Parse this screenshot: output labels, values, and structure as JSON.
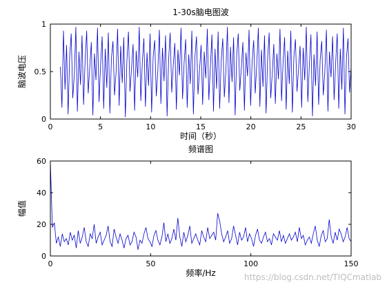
{
  "colors": {
    "line": "#0000cc",
    "axes": "#000000",
    "background": "#ffffff",
    "watermark": "#bdbdbd"
  },
  "watermark": "https://blog.csdn.net/TIQCmatlab",
  "chart_data": [
    {
      "type": "line",
      "title": "1-30s脑电图波",
      "xlabel": "时间（秒）",
      "ylabel": "脑波电压",
      "xlim": [
        0,
        30
      ],
      "ylim": [
        0,
        1
      ],
      "xticks": [
        "0",
        "5",
        "10",
        "15",
        "20",
        "25",
        "30"
      ],
      "yticks": [
        "0",
        "0.5",
        "1"
      ],
      "grid": false,
      "series": [
        {
          "x_start": 1,
          "x_end": 30,
          "values": [
            0.55,
            0.12,
            0.93,
            0.31,
            0.78,
            0.05,
            0.66,
            0.9,
            0.22,
            0.47,
            0.97,
            0.08,
            0.71,
            0.36,
            0.88,
            0.15,
            0.62,
            0.93,
            0.27,
            0.55,
            0.81,
            0.04,
            0.69,
            0.41,
            0.96,
            0.18,
            0.58,
            0.87,
            0.11,
            0.74,
            0.33,
            0.91,
            0.06,
            0.64,
            0.82,
            0.25,
            0.49,
            0.95,
            0.14,
            0.77,
            0.38,
            0.86,
            0.02,
            0.61,
            0.92,
            0.29,
            0.53,
            0.79,
            0.09,
            0.72,
            0.44,
            0.97,
            0.19,
            0.6,
            0.85,
            0.13,
            0.7,
            0.35,
            0.9,
            0.07,
            0.66,
            0.83,
            0.24,
            0.51,
            0.94,
            0.16,
            0.75,
            0.4,
            0.88,
            0.03,
            0.63,
            0.91,
            0.28,
            0.57,
            0.8,
            0.1,
            0.73,
            0.46,
            0.96,
            0.21,
            0.59,
            0.84,
            0.12,
            0.68,
            0.37,
            0.93,
            0.05,
            0.65,
            0.87,
            0.26,
            0.52,
            0.78,
            0.15,
            0.71,
            0.43,
            0.95,
            0.2,
            0.56,
            0.89,
            0.08,
            0.74,
            0.32,
            0.92,
            0.11,
            0.62,
            0.85,
            0.23,
            0.5,
            0.97,
            0.17,
            0.76,
            0.39,
            0.86,
            0.04,
            0.67,
            0.9,
            0.3,
            0.54,
            0.81,
            0.09,
            0.7,
            0.45,
            0.94,
            0.14,
            0.61,
            0.83,
            0.27,
            0.58,
            0.96,
            0.13,
            0.73,
            0.34,
            0.88,
            0.06,
            0.64,
            0.91,
            0.22,
            0.48,
            0.79,
            0.16,
            0.69,
            0.42,
            0.95,
            0.19,
            0.6,
            0.86,
            0.1,
            0.72,
            0.37,
            0.93,
            0.07,
            0.66,
            0.84,
            0.29,
            0.53,
            0.77,
            0.12,
            0.75,
            0.41,
            0.97,
            0.18,
            0.57,
            0.89,
            0.03,
            0.68,
            0.35,
            0.92,
            0.15,
            0.63,
            0.82,
            0.25,
            0.5,
            0.94,
            0.08,
            0.71,
            0.44,
            0.87,
            0.2,
            0.59,
            0.9,
            0.11,
            0.74,
            0.31,
            0.96,
            0.05,
            0.65,
            0.85,
            0.28,
            0.55
          ],
          "color": "#0000cc"
        }
      ]
    },
    {
      "type": "line",
      "title": "频谱图",
      "xlabel": "频率/Hz",
      "ylabel": "幅值",
      "xlim": [
        0,
        150
      ],
      "ylim": [
        0,
        60
      ],
      "xticks": [
        "0",
        "50",
        "100",
        "150"
      ],
      "yticks": [
        "0",
        "20",
        "40",
        "60"
      ],
      "grid": false,
      "series": [
        {
          "x_start": 0,
          "x_end": 150,
          "values": [
            60,
            18,
            21,
            8,
            12,
            6,
            14,
            9,
            11,
            7,
            15,
            10,
            13,
            5,
            16,
            8,
            12,
            18,
            9,
            6,
            14,
            11,
            20,
            8,
            12,
            15,
            7,
            10,
            13,
            19,
            9,
            6,
            17,
            12,
            8,
            14,
            10,
            5,
            11,
            13,
            7,
            9,
            15,
            12,
            4,
            10,
            8,
            14,
            18,
            11,
            9,
            6,
            13,
            16,
            10,
            7,
            12,
            21,
            9,
            14,
            8,
            11,
            17,
            10,
            24,
            12,
            6,
            15,
            9,
            13,
            19,
            8,
            11,
            14,
            10,
            7,
            16,
            12,
            9,
            18,
            11,
            13,
            15,
            10,
            27,
            22,
            14,
            9,
            12,
            16,
            8,
            11,
            19,
            13,
            7,
            15,
            10,
            12,
            18,
            9,
            14,
            11,
            6,
            13,
            17,
            10,
            8,
            12,
            15,
            9,
            11,
            7,
            14,
            12,
            10,
            16,
            9,
            13,
            8,
            11,
            14,
            10,
            12,
            15,
            9,
            18,
            11,
            13,
            7,
            10,
            12,
            8,
            14,
            19,
            10,
            6,
            13,
            16,
            9,
            11,
            23,
            12,
            8,
            15,
            10,
            17,
            14,
            9,
            12,
            18,
            11,
            9
          ]
        }
      ]
    }
  ]
}
